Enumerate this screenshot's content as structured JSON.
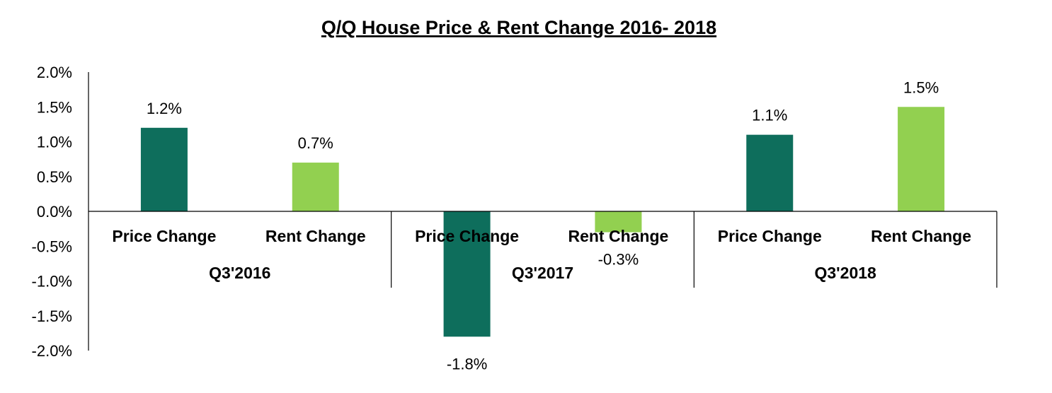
{
  "chart_data": {
    "type": "bar",
    "title": "Q/Q House Price & Rent Change 2016- 2018",
    "xlabel": "",
    "ylabel": "",
    "ylim": [
      -2.0,
      2.0
    ],
    "yticks": [
      "2.0%",
      "1.5%",
      "1.0%",
      "0.5%",
      "0.0%",
      "-0.5%",
      "-1.0%",
      "-1.5%",
      "-2.0%"
    ],
    "ytick_values": [
      2.0,
      1.5,
      1.0,
      0.5,
      0.0,
      -0.5,
      -1.0,
      -1.5,
      -2.0
    ],
    "grid": false,
    "legend": "none",
    "groups": [
      {
        "label": "Q3'2016",
        "bars": [
          {
            "category": "Price Change",
            "value": 1.2,
            "label": "1.2%",
            "color": "#0e6e5c"
          },
          {
            "category": "Rent Change",
            "value": 0.7,
            "label": "0.7%",
            "color": "#92d050"
          }
        ]
      },
      {
        "label": "Q3'2017",
        "bars": [
          {
            "category": "Price Change",
            "value": -1.8,
            "label": "-1.8%",
            "color": "#0e6e5c"
          },
          {
            "category": "Rent Change",
            "value": -0.3,
            "label": "-0.3%",
            "color": "#92d050"
          }
        ]
      },
      {
        "label": "Q3'2018",
        "bars": [
          {
            "category": "Price Change",
            "value": 1.1,
            "label": "1.1%",
            "color": "#0e6e5c"
          },
          {
            "category": "Rent Change",
            "value": 1.5,
            "label": "1.5%",
            "color": "#92d050"
          }
        ]
      }
    ]
  }
}
